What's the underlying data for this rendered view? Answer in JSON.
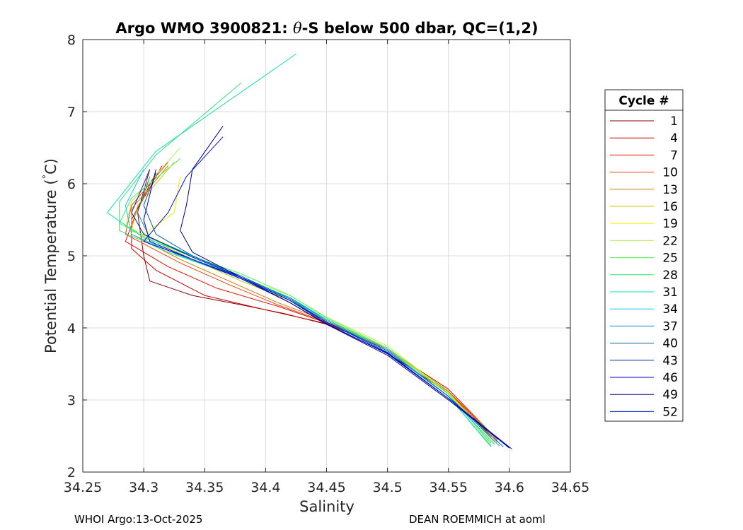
{
  "chart_data": {
    "type": "line",
    "title": "Argo WMO 3900821: θ-S below 500 dbar,  QC=(1,2)",
    "title_parts": {
      "prefix": "Argo WMO 3900821: ",
      "theta": "θ",
      "suffix": "-S below 500 dbar,  QC=(1,2)"
    },
    "xlabel": "Salinity",
    "ylabel": "Potential Temperature (°C)",
    "ylabel_parts": {
      "main": "Potential Temperature (",
      "deg": "°",
      "unit": "C)"
    },
    "xlim": [
      34.25,
      34.65
    ],
    "ylim": [
      2,
      8
    ],
    "xticks": [
      "34.25",
      "34.3",
      "34.35",
      "34.4",
      "34.45",
      "34.5",
      "34.55",
      "34.6",
      "34.65"
    ],
    "yticks": [
      "2",
      "3",
      "4",
      "5",
      "6",
      "7",
      "8"
    ],
    "grid": true,
    "legend": {
      "title": "Cycle #",
      "placement": "outside-right",
      "entries": [
        "1",
        "4",
        "7",
        "10",
        "13",
        "16",
        "19",
        "22",
        "25",
        "28",
        "31",
        "34",
        "37",
        "40",
        "43",
        "46",
        "49",
        "52"
      ],
      "colors": [
        "#8b0000",
        "#c80000",
        "#e81000",
        "#f04010",
        "#c88000",
        "#c8c800",
        "#f0f000",
        "#b4f050",
        "#50f050",
        "#28e878",
        "#10e0b0",
        "#10c8f0",
        "#0090c8",
        "#0060b0",
        "#0028b0",
        "#0000c0",
        "#000088",
        "#0010d0"
      ]
    },
    "series": [
      {
        "name": "1",
        "color": "#8b0000",
        "points": [
          [
            34.305,
            6.2
          ],
          [
            34.295,
            5.6
          ],
          [
            34.3,
            5.0
          ],
          [
            34.305,
            4.65
          ],
          [
            34.34,
            4.45
          ],
          [
            34.38,
            4.32
          ],
          [
            34.415,
            4.2
          ],
          [
            34.45,
            4.05
          ],
          [
            34.5,
            3.65
          ],
          [
            34.55,
            3.1
          ],
          [
            34.585,
            2.48
          ]
        ]
      },
      {
        "name": "4",
        "color": "#c80000",
        "points": [
          [
            34.31,
            6.15
          ],
          [
            34.29,
            5.5
          ],
          [
            34.29,
            5.1
          ],
          [
            34.31,
            4.8
          ],
          [
            34.35,
            4.45
          ],
          [
            34.4,
            4.25
          ],
          [
            34.45,
            4.06
          ],
          [
            34.5,
            3.7
          ],
          [
            34.55,
            3.15
          ],
          [
            34.59,
            2.45
          ]
        ]
      },
      {
        "name": "7",
        "color": "#e81000",
        "points": [
          [
            34.315,
            6.25
          ],
          [
            34.295,
            5.65
          ],
          [
            34.285,
            5.2
          ],
          [
            34.32,
            4.85
          ],
          [
            34.36,
            4.55
          ],
          [
            34.41,
            4.3
          ],
          [
            34.45,
            4.07
          ],
          [
            34.5,
            3.7
          ],
          [
            34.55,
            3.12
          ],
          [
            34.59,
            2.42
          ]
        ]
      },
      {
        "name": "10",
        "color": "#f04010",
        "points": [
          [
            34.32,
            6.3
          ],
          [
            34.29,
            5.7
          ],
          [
            34.285,
            5.3
          ],
          [
            34.33,
            4.9
          ],
          [
            34.37,
            4.6
          ],
          [
            34.41,
            4.32
          ],
          [
            34.45,
            4.08
          ],
          [
            34.5,
            3.72
          ],
          [
            34.55,
            3.1
          ],
          [
            34.59,
            2.45
          ]
        ]
      },
      {
        "name": "13",
        "color": "#c88000",
        "points": [
          [
            34.32,
            6.25
          ],
          [
            34.29,
            5.65
          ],
          [
            34.29,
            5.3
          ],
          [
            34.33,
            4.95
          ],
          [
            34.37,
            4.65
          ],
          [
            34.41,
            4.35
          ],
          [
            34.45,
            4.1
          ],
          [
            34.5,
            3.72
          ],
          [
            34.55,
            3.12
          ],
          [
            34.59,
            2.46
          ]
        ]
      },
      {
        "name": "16",
        "color": "#c8c800",
        "points": [
          [
            34.325,
            6.3
          ],
          [
            34.295,
            5.7
          ],
          [
            34.29,
            5.35
          ],
          [
            34.34,
            4.95
          ],
          [
            34.38,
            4.65
          ],
          [
            34.42,
            4.38
          ],
          [
            34.45,
            4.1
          ],
          [
            34.5,
            3.7
          ],
          [
            34.55,
            3.1
          ],
          [
            34.588,
            2.42
          ]
        ]
      },
      {
        "name": "19",
        "color": "#f0f000",
        "points": [
          [
            34.33,
            6.1
          ],
          [
            34.325,
            5.6
          ],
          [
            34.3,
            5.3
          ],
          [
            34.34,
            5.0
          ],
          [
            34.38,
            4.7
          ],
          [
            34.42,
            4.4
          ],
          [
            34.45,
            4.12
          ],
          [
            34.5,
            3.72
          ],
          [
            34.55,
            3.1
          ],
          [
            34.588,
            2.4
          ]
        ]
      },
      {
        "name": "22",
        "color": "#b4f050",
        "points": [
          [
            34.33,
            6.5
          ],
          [
            34.29,
            5.75
          ],
          [
            34.285,
            5.4
          ],
          [
            34.34,
            5.0
          ],
          [
            34.38,
            4.7
          ],
          [
            34.42,
            4.45
          ],
          [
            34.45,
            4.15
          ],
          [
            34.5,
            3.75
          ],
          [
            34.55,
            3.1
          ],
          [
            34.585,
            2.38
          ]
        ]
      },
      {
        "name": "25",
        "color": "#50f050",
        "points": [
          [
            34.33,
            6.35
          ],
          [
            34.29,
            5.8
          ],
          [
            34.28,
            5.45
          ],
          [
            34.33,
            5.05
          ],
          [
            34.38,
            4.75
          ],
          [
            34.42,
            4.45
          ],
          [
            34.45,
            4.14
          ],
          [
            34.5,
            3.72
          ],
          [
            34.55,
            3.08
          ],
          [
            34.585,
            2.4
          ]
        ]
      },
      {
        "name": "28",
        "color": "#28e878",
        "points": [
          [
            34.38,
            7.4
          ],
          [
            34.31,
            6.4
          ],
          [
            34.28,
            5.75
          ],
          [
            34.28,
            5.35
          ],
          [
            34.32,
            5.05
          ],
          [
            34.37,
            4.75
          ],
          [
            34.42,
            4.42
          ],
          [
            34.45,
            4.12
          ],
          [
            34.5,
            3.7
          ],
          [
            34.55,
            3.05
          ],
          [
            34.585,
            2.36
          ]
        ]
      },
      {
        "name": "31",
        "color": "#10e0b0",
        "points": [
          [
            34.425,
            7.8
          ],
          [
            34.31,
            6.45
          ],
          [
            34.27,
            5.6
          ],
          [
            34.3,
            5.25
          ],
          [
            34.34,
            5.0
          ],
          [
            34.38,
            4.7
          ],
          [
            34.42,
            4.4
          ],
          [
            34.45,
            4.12
          ],
          [
            34.5,
            3.7
          ],
          [
            34.55,
            3.05
          ],
          [
            34.585,
            2.35
          ]
        ]
      },
      {
        "name": "34",
        "color": "#10c8f0",
        "points": [
          [
            34.3,
            6.2
          ],
          [
            34.285,
            5.7
          ],
          [
            34.29,
            5.3
          ],
          [
            34.33,
            5.0
          ],
          [
            34.37,
            4.75
          ],
          [
            34.42,
            4.42
          ],
          [
            34.45,
            4.12
          ],
          [
            34.5,
            3.7
          ],
          [
            34.55,
            3.05
          ],
          [
            34.588,
            2.38
          ]
        ]
      },
      {
        "name": "37",
        "color": "#0090c8",
        "points": [
          [
            34.305,
            6.1
          ],
          [
            34.295,
            5.6
          ],
          [
            34.305,
            5.25
          ],
          [
            34.34,
            5.0
          ],
          [
            34.38,
            4.7
          ],
          [
            34.42,
            4.42
          ],
          [
            34.45,
            4.1
          ],
          [
            34.5,
            3.68
          ],
          [
            34.55,
            3.05
          ],
          [
            34.592,
            2.36
          ]
        ]
      },
      {
        "name": "40",
        "color": "#0060b0",
        "points": [
          [
            34.31,
            6.15
          ],
          [
            34.3,
            5.7
          ],
          [
            34.31,
            5.3
          ],
          [
            34.34,
            5.0
          ],
          [
            34.38,
            4.72
          ],
          [
            34.42,
            4.4
          ],
          [
            34.45,
            4.08
          ],
          [
            34.5,
            3.68
          ],
          [
            34.55,
            3.05
          ],
          [
            34.595,
            2.35
          ]
        ]
      },
      {
        "name": "43",
        "color": "#0028b0",
        "points": [
          [
            34.305,
            6.2
          ],
          [
            34.29,
            5.6
          ],
          [
            34.3,
            5.3
          ],
          [
            34.34,
            4.98
          ],
          [
            34.38,
            4.7
          ],
          [
            34.42,
            4.38
          ],
          [
            34.45,
            4.08
          ],
          [
            34.5,
            3.66
          ],
          [
            34.55,
            3.02
          ],
          [
            34.6,
            2.33
          ]
        ]
      },
      {
        "name": "46",
        "color": "#0000c0",
        "points": [
          [
            34.31,
            6.2
          ],
          [
            34.3,
            5.5
          ],
          [
            34.305,
            5.2
          ],
          [
            34.34,
            4.95
          ],
          [
            34.38,
            4.68
          ],
          [
            34.42,
            4.35
          ],
          [
            34.45,
            4.05
          ],
          [
            34.5,
            3.65
          ],
          [
            34.55,
            3.02
          ],
          [
            34.6,
            2.34
          ]
        ]
      },
      {
        "name": "49",
        "color": "#000088",
        "points": [
          [
            34.365,
            6.8
          ],
          [
            34.34,
            6.2
          ],
          [
            34.335,
            5.7
          ],
          [
            34.33,
            5.35
          ],
          [
            34.34,
            5.05
          ],
          [
            34.38,
            4.7
          ],
          [
            34.42,
            4.35
          ],
          [
            34.45,
            4.05
          ],
          [
            34.5,
            3.62
          ],
          [
            34.55,
            3.0
          ],
          [
            34.6,
            2.34
          ]
        ]
      },
      {
        "name": "52",
        "color": "#0010d0",
        "points": [
          [
            34.365,
            6.65
          ],
          [
            34.335,
            6.1
          ],
          [
            34.32,
            5.6
          ],
          [
            34.3,
            5.2
          ],
          [
            34.34,
            4.95
          ],
          [
            34.38,
            4.7
          ],
          [
            34.42,
            4.38
          ],
          [
            34.45,
            4.06
          ],
          [
            34.5,
            3.64
          ],
          [
            34.55,
            3.02
          ],
          [
            34.602,
            2.32
          ]
        ]
      }
    ]
  },
  "footer": {
    "left": "WHOI Argo:13-Oct-2025",
    "right": "DEAN ROEMMICH at aoml"
  }
}
